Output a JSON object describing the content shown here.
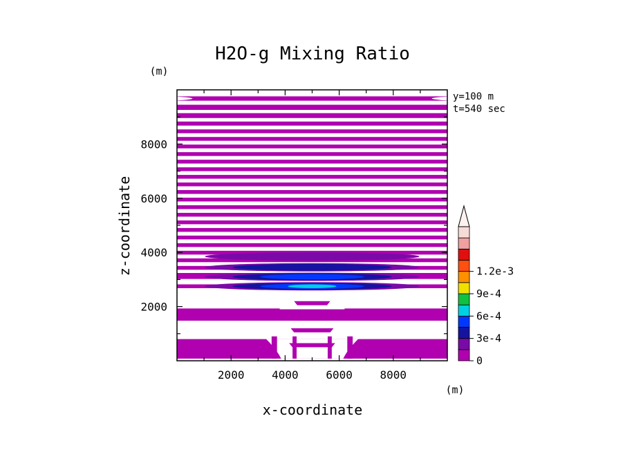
{
  "chart_data": {
    "type": "heatmap",
    "title": "H2O-g Mixing Ratio",
    "xlabel": "x-coordinate",
    "ylabel": "z-coordinate",
    "x_unit": "(m)",
    "y_unit": "(m)",
    "xlim": [
      0,
      10000
    ],
    "ylim": [
      0,
      10000
    ],
    "x_ticks": [
      2000,
      4000,
      6000,
      8000
    ],
    "y_ticks": [
      2000,
      4000,
      6000,
      8000
    ],
    "annotations": [
      "y=100 m",
      "t=540 sec"
    ],
    "colorbar": {
      "levels": [
        0,
        0.00015,
        0.0003,
        0.00045,
        0.0006,
        0.00075,
        0.0009,
        0.00105,
        0.0012,
        0.00135
      ],
      "labels": [
        "0",
        "3e-4",
        "6e-4",
        "9e-4",
        "1.2e-3"
      ],
      "label_values": [
        0,
        0.0003,
        0.0006,
        0.0009,
        0.0012
      ],
      "colors": [
        "#b000b0",
        "#7a0aa8",
        "#1414a0",
        "#0038ff",
        "#00d0e0",
        "#10c040",
        "#f0e000",
        "#ff9000",
        "#ff5010",
        "#e01010",
        "#f0a0a0",
        "#f6dcd8"
      ],
      "extend": "max"
    },
    "bands_z_m": [
      [
        9600,
        9760
      ],
      [
        9260,
        9450
      ],
      [
        8960,
        9140
      ],
      [
        8680,
        8830
      ],
      [
        8400,
        8540
      ],
      [
        8120,
        8260
      ],
      [
        7840,
        7980
      ],
      [
        7560,
        7700
      ],
      [
        7280,
        7420
      ],
      [
        7000,
        7140
      ],
      [
        6720,
        6860
      ],
      [
        6440,
        6580
      ],
      [
        6160,
        6300
      ],
      [
        5880,
        6020
      ],
      [
        5600,
        5740
      ],
      [
        5320,
        5460
      ],
      [
        5040,
        5180
      ],
      [
        4760,
        4900
      ],
      [
        4480,
        4620
      ],
      [
        4200,
        4340
      ],
      [
        3920,
        4060
      ],
      [
        3640,
        3780
      ],
      [
        3360,
        3500
      ],
      [
        3020,
        3240
      ],
      [
        2680,
        2820
      ],
      [
        1480,
        1930
      ],
      [
        80,
        800
      ]
    ],
    "moist_cores": [
      {
        "x": 5000,
        "z": 2750,
        "level_index": 4
      },
      {
        "x": 5000,
        "z": 3100,
        "level_index": 3
      },
      {
        "x": 5000,
        "z": 3450,
        "level_index": 2
      },
      {
        "x": 5000,
        "z": 3850,
        "level_index": 1
      }
    ]
  }
}
